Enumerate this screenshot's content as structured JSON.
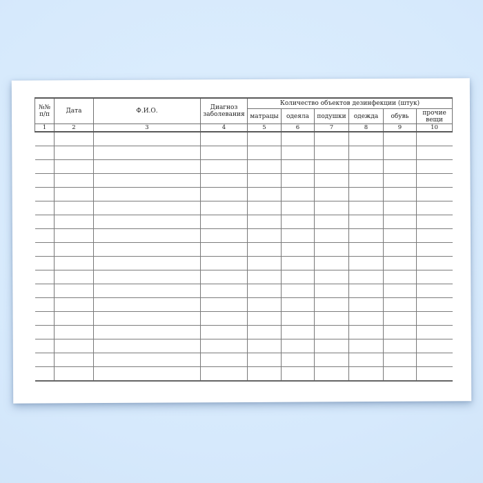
{
  "page": {
    "background_color": "#d6e9fc",
    "paper_color": "#ffffff",
    "table_line_color": "#7b7b7b",
    "text_color": "#222222"
  },
  "table": {
    "group_header": {
      "label": "Количество объектов дезинфекции (штук)"
    },
    "columns": [
      {
        "label": "№№ п/п",
        "number": "1"
      },
      {
        "label": "Дата",
        "number": "2"
      },
      {
        "label": "Ф.И.О.",
        "number": "3"
      },
      {
        "label": "Диагноз заболевания",
        "number": "4"
      },
      {
        "label": "матрацы",
        "number": "5"
      },
      {
        "label": "одеяла",
        "number": "6"
      },
      {
        "label": "подушки",
        "number": "7"
      },
      {
        "label": "одежда",
        "number": "8"
      },
      {
        "label": "обувь",
        "number": "9"
      },
      {
        "label": "прочие вещи",
        "number": "10"
      }
    ],
    "empty_row_count": 18,
    "cells_filled": ""
  }
}
